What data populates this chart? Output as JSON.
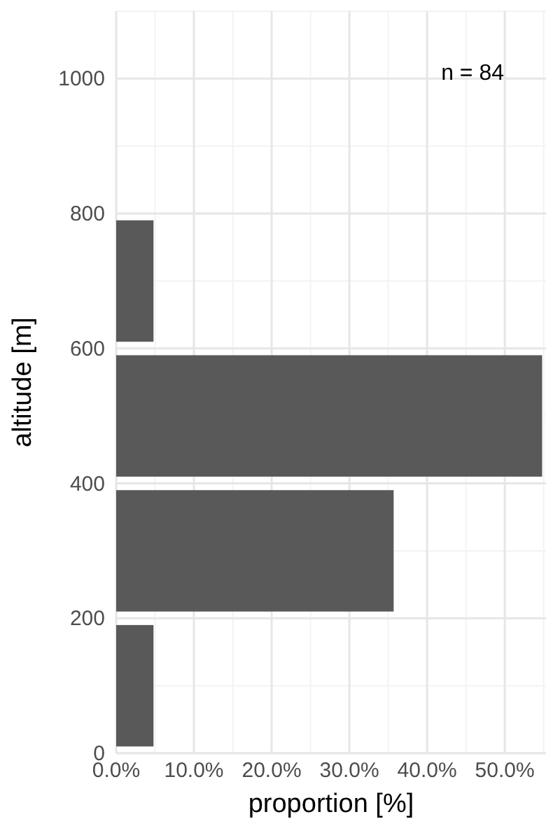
{
  "chart_data": {
    "type": "histogram",
    "orientation": "horizontal",
    "ylabel": "altitude [m]",
    "xlabel": "proportion [%]",
    "bins": [
      0,
      200,
      400,
      600,
      800
    ],
    "values": [
      4.8,
      35.7,
      54.8,
      4.8
    ],
    "color": "#595959",
    "ylim": [
      0,
      1100
    ],
    "yticks": [
      0,
      200,
      400,
      600,
      800,
      1000
    ],
    "xlim": [
      0,
      55.3
    ],
    "xticks": [
      {
        "value": 0,
        "label": "0.0%"
      },
      {
        "value": 10,
        "label": "10.0%"
      },
      {
        "value": 20,
        "label": "20.0%"
      },
      {
        "value": 30,
        "label": "30.0%"
      },
      {
        "value": 40,
        "label": "40.0%"
      },
      {
        "value": 50,
        "label": "50.0%"
      }
    ],
    "grid": true,
    "annotations": [
      "n = 84"
    ]
  }
}
